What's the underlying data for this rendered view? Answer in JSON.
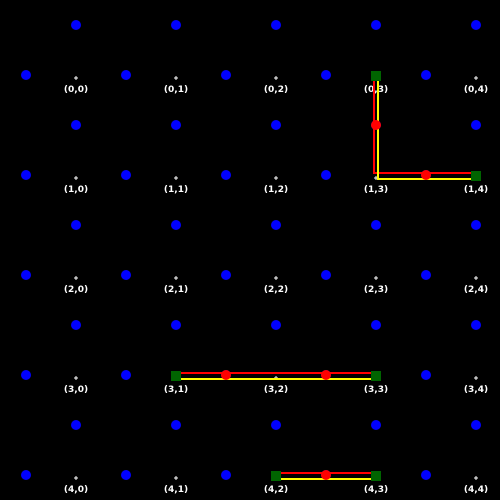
{
  "grid": {
    "rows": 5,
    "cols": 5,
    "cell_labels": [
      [
        "(0,0)",
        "(0,1)",
        "(0,2)",
        "(0,3)",
        "(0,4)"
      ],
      [
        "(1,0)",
        "(1,1)",
        "(1,2)",
        "(1,3)",
        "(1,4)"
      ],
      [
        "(2,0)",
        "(2,1)",
        "(2,2)",
        "(2,3)",
        "(2,4)"
      ],
      [
        "(3,0)",
        "(3,1)",
        "(3,2)",
        "(3,3)",
        "(3,4)"
      ],
      [
        "(4,0)",
        "(4,1)",
        "(4,2)",
        "(4,3)",
        "(4,4)"
      ]
    ]
  },
  "colors": {
    "background": "#000000",
    "dot": "#0000ff",
    "endpoint": "#006400",
    "midpoint": "#ff0000",
    "line_red": "#ff0000",
    "line_yellow": "#ffff00",
    "label": "#ffffff"
  },
  "paths": [
    {
      "name": "path-a",
      "cells": [
        [
          0,
          3
        ],
        [
          1,
          3
        ],
        [
          1,
          4
        ]
      ]
    },
    {
      "name": "path-b",
      "cells": [
        [
          3,
          1
        ],
        [
          3,
          2
        ],
        [
          3,
          3
        ]
      ]
    },
    {
      "name": "path-c",
      "cells": [
        [
          4,
          2
        ],
        [
          4,
          3
        ]
      ]
    }
  ]
}
